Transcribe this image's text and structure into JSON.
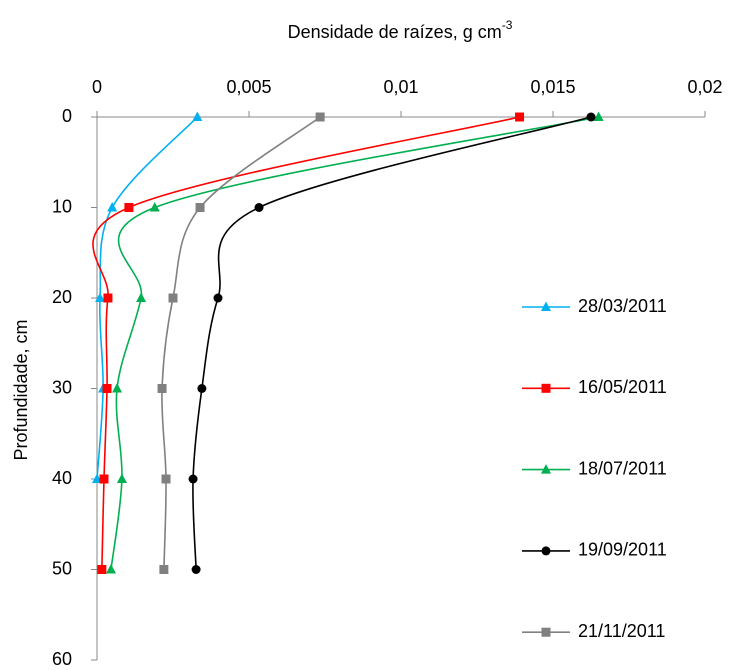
{
  "chart_data": {
    "type": "line",
    "xlabel": "Densidade de raízes,  g cm",
    "xlabel_exponent": "-3",
    "ylabel": "Profundidade, cm",
    "y": [
      0,
      10,
      20,
      30,
      40,
      50
    ],
    "xlim": [
      0,
      0.02
    ],
    "xticks": [
      0,
      {
        "value": 0.005,
        "label": "0,005"
      },
      {
        "value": 0.01,
        "label": "0,01"
      },
      {
        "value": 0.015,
        "label": "0,015"
      },
      {
        "value": 0.02,
        "label": "0,02"
      }
    ],
    "ylim": [
      0,
      60
    ],
    "yticks": [
      0,
      10,
      20,
      30,
      40,
      50,
      60
    ],
    "y_inverted": true,
    "x_axis_top": true,
    "series": [
      {
        "name": "28/03/2011",
        "color": "#00b0f0",
        "marker": "triangle",
        "values": [
          0.0033,
          0.0005,
          0.0001,
          0.0002,
          0,
          null
        ]
      },
      {
        "name": "16/05/2011",
        "color": "#ff0000",
        "marker": "square",
        "values": [
          0.0139,
          0.00105,
          0.00036,
          0.00033,
          0.00023,
          0.00016
        ]
      },
      {
        "name": "18/07/2011",
        "color": "#00b050",
        "marker": "triangle",
        "values": [
          0.0165,
          0.0019,
          0.00145,
          0.00066,
          0.00082,
          0.00046
        ]
      },
      {
        "name": "19/09/2011",
        "color": "#000000",
        "marker": "circle",
        "values": [
          0.01625,
          0.00533,
          0.00398,
          0.00345,
          0.00316,
          0.00326
        ]
      },
      {
        "name": "21/11/2011",
        "color": "#808080",
        "marker": "square",
        "values": [
          0.00734,
          0.00339,
          0.0025,
          0.00214,
          0.00227,
          0.0022
        ]
      }
    ]
  }
}
